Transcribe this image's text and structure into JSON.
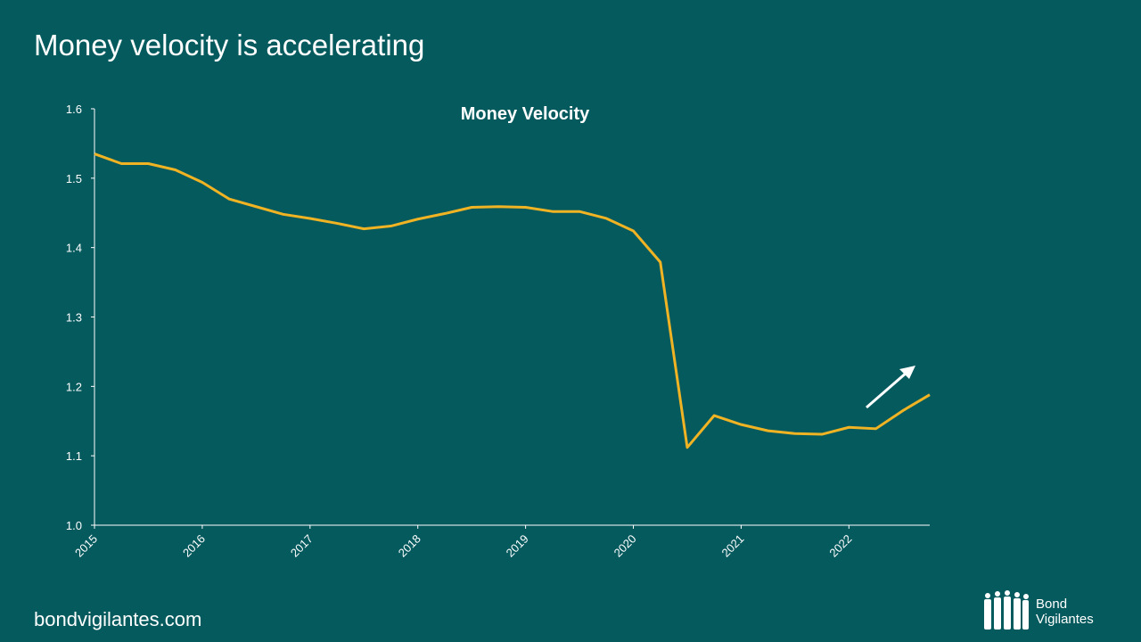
{
  "title": "Money velocity is accelerating",
  "footer": "bondvigilantes.com",
  "logo": [
    "Bond",
    "Vigilantes"
  ],
  "chart_data": {
    "type": "line",
    "title": "Money Velocity",
    "x": [
      2015,
      2015.25,
      2015.5,
      2015.75,
      2016,
      2016.25,
      2016.5,
      2016.75,
      2017,
      2017.25,
      2017.5,
      2017.75,
      2018,
      2018.25,
      2018.5,
      2018.75,
      2019,
      2019.25,
      2019.5,
      2019.75,
      2020,
      2020.25,
      2020.5,
      2020.75,
      2021,
      2021.25,
      2021.5,
      2021.75,
      2022,
      2022.25,
      2022.5,
      2022.75
    ],
    "series": [
      {
        "name": "Money Velocity",
        "color": "#f0b323",
        "values": [
          1.535,
          1.521,
          1.521,
          1.512,
          1.494,
          1.47,
          1.459,
          1.448,
          1.442,
          1.435,
          1.427,
          1.431,
          1.441,
          1.449,
          1.458,
          1.459,
          1.458,
          1.452,
          1.452,
          1.442,
          1.424,
          1.379,
          1.112,
          1.158,
          1.145,
          1.136,
          1.132,
          1.131,
          1.141,
          1.139,
          1.165,
          1.188
        ]
      }
    ],
    "xlim": [
      2015,
      2022.75
    ],
    "xticks": [
      2015,
      2016,
      2017,
      2018,
      2019,
      2020,
      2021,
      2022
    ],
    "ylim": [
      1,
      1.6
    ],
    "yticks": [
      {
        "value": 1,
        "label": "1.0"
      },
      1.1,
      1.2,
      1.3,
      1.4,
      1.5,
      1.6
    ],
    "grid": false
  }
}
